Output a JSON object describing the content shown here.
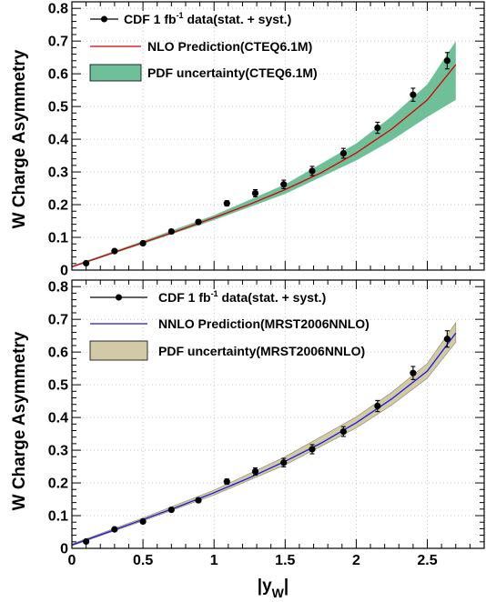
{
  "chart_data": [
    {
      "type": "line",
      "panel": "top",
      "ylabel": "W Charge Asymmetry",
      "xlabel": "",
      "xlim": [
        0,
        2.9
      ],
      "ylim": [
        0,
        0.82
      ],
      "x_ticks": [
        "0",
        "0.5",
        "1",
        "1.5",
        "2",
        "2.5"
      ],
      "y_ticks": [
        "0",
        "0.1",
        "0.2",
        "0.3",
        "0.4",
        "0.5",
        "0.6",
        "0.7",
        "0.8"
      ],
      "grid": true,
      "legend_position": "top-left",
      "legend": {
        "data_label_pre": "CDF 1 fb",
        "data_label_sup": "-1",
        "data_label_post": " data(stat. + syst.)",
        "theory_label": "NLO Prediction(CTEQ6.1M)",
        "band_label": "PDF uncertainty(CTEQ6.1M)"
      },
      "colors": {
        "theory": "#d40000",
        "band": "#6fbf99",
        "data": "#000000"
      },
      "data_points": {
        "x": [
          0.1,
          0.3,
          0.5,
          0.7,
          0.89,
          1.09,
          1.29,
          1.49,
          1.69,
          1.91,
          2.15,
          2.4,
          2.64
        ],
        "y": [
          0.021,
          0.058,
          0.082,
          0.118,
          0.147,
          0.204,
          0.235,
          0.262,
          0.303,
          0.357,
          0.435,
          0.536,
          0.64
        ],
        "err": [
          0.004,
          0.005,
          0.006,
          0.006,
          0.007,
          0.008,
          0.011,
          0.013,
          0.014,
          0.015,
          0.017,
          0.02,
          0.025
        ]
      },
      "theory_curve": {
        "x": [
          0.0,
          0.25,
          0.5,
          0.75,
          1.0,
          1.25,
          1.5,
          1.75,
          2.0,
          2.25,
          2.5,
          2.7
        ],
        "y": [
          0.01,
          0.047,
          0.084,
          0.121,
          0.16,
          0.201,
          0.246,
          0.297,
          0.358,
          0.431,
          0.52,
          0.628
        ]
      },
      "band": {
        "x": [
          0.0,
          0.5,
          1.0,
          1.5,
          2.0,
          2.25,
          2.5,
          2.7
        ],
        "low": [
          0.008,
          0.08,
          0.153,
          0.233,
          0.335,
          0.397,
          0.468,
          0.52
        ],
        "high": [
          0.013,
          0.089,
          0.168,
          0.262,
          0.387,
          0.47,
          0.568,
          0.7
        ]
      }
    },
    {
      "type": "line",
      "panel": "bottom",
      "ylabel": "W Charge Asymmetry",
      "xlabel": "|y_W|",
      "xlim": [
        0,
        2.9
      ],
      "ylim": [
        0,
        0.82
      ],
      "x_ticks": [
        "0",
        "0.5",
        "1",
        "1.5",
        "2",
        "2.5"
      ],
      "y_ticks": [
        "0",
        "0.1",
        "0.2",
        "0.3",
        "0.4",
        "0.5",
        "0.6",
        "0.7",
        "0.8"
      ],
      "grid": true,
      "legend_position": "top-left",
      "legend": {
        "data_label_pre": "CDF 1 fb",
        "data_label_sup": "-1",
        "data_label_post": " data(stat. + syst.)",
        "theory_label": "NNLO Prediction(MRST2006NNLO)",
        "band_label": "PDF uncertainty(MRST2006NNLO)"
      },
      "colors": {
        "theory": "#1a1adc",
        "band": "#d2c9a6",
        "data": "#000000"
      },
      "data_points": {
        "x": [
          0.1,
          0.3,
          0.5,
          0.7,
          0.89,
          1.09,
          1.29,
          1.49,
          1.69,
          1.91,
          2.15,
          2.4,
          2.64
        ],
        "y": [
          0.021,
          0.058,
          0.082,
          0.118,
          0.147,
          0.204,
          0.235,
          0.262,
          0.303,
          0.357,
          0.435,
          0.536,
          0.64
        ],
        "err": [
          0.004,
          0.005,
          0.006,
          0.006,
          0.007,
          0.008,
          0.011,
          0.013,
          0.014,
          0.015,
          0.017,
          0.02,
          0.025
        ]
      },
      "theory_curve": {
        "x": [
          0.0,
          0.25,
          0.5,
          0.75,
          1.0,
          1.25,
          1.5,
          1.75,
          2.0,
          2.25,
          2.5,
          2.7
        ],
        "y": [
          0.01,
          0.049,
          0.088,
          0.128,
          0.17,
          0.216,
          0.266,
          0.321,
          0.384,
          0.457,
          0.542,
          0.658
        ]
      },
      "band": {
        "x": [
          0.0,
          0.5,
          1.0,
          1.5,
          2.0,
          2.25,
          2.5,
          2.7
        ],
        "low": [
          0.008,
          0.084,
          0.163,
          0.255,
          0.368,
          0.438,
          0.52,
          0.63
        ],
        "high": [
          0.013,
          0.093,
          0.178,
          0.28,
          0.402,
          0.477,
          0.565,
          0.69
        ]
      }
    }
  ]
}
